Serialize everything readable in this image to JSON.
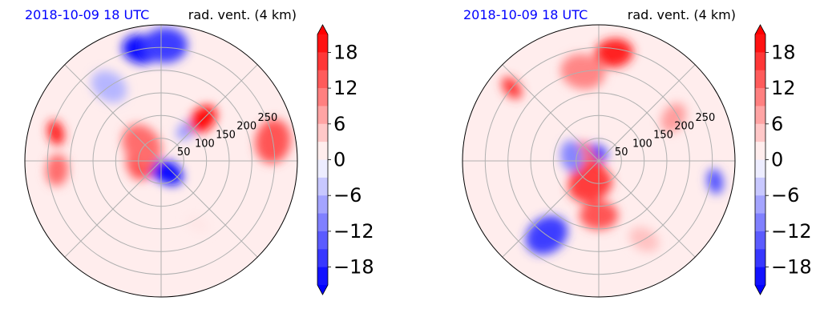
{
  "chart_data": [
    {
      "type": "heatmap",
      "projection": "polar",
      "title_left": "2018-10-09 18 UTC",
      "title_right": "rad. vent. (4 km)",
      "r_ticks": [
        "50",
        "100",
        "150",
        "200",
        "250"
      ],
      "r_max": 300,
      "grid": true,
      "colorbar": {
        "ticks": [
          "18",
          "12",
          "6",
          "0",
          "−6",
          "−12",
          "−18"
        ],
        "range": [
          -21,
          21
        ],
        "levels": 14,
        "extend": "both",
        "cmap": "bwr"
      },
      "features": [
        {
          "r": 20,
          "theta": 250,
          "value": -21
        },
        {
          "r": 30,
          "theta": 300,
          "value": -20
        },
        {
          "r": 45,
          "theta": 180,
          "value": 14
        },
        {
          "r": 55,
          "theta": 140,
          "value": 12
        },
        {
          "r": 90,
          "theta": 50,
          "value": -8
        },
        {
          "r": 130,
          "theta": 45,
          "value": 20
        },
        {
          "r": 250,
          "theta": 100,
          "value": -20
        },
        {
          "r": 255,
          "theta": 88,
          "value": -16
        },
        {
          "r": 240,
          "theta": 165,
          "value": 18
        },
        {
          "r": 230,
          "theta": 185,
          "value": 12
        },
        {
          "r": 200,
          "theta": 125,
          "value": -6
        },
        {
          "r": 250,
          "theta": 10,
          "value": 14
        },
        {
          "r": 160,
          "theta": 300,
          "value": 2
        }
      ]
    },
    {
      "type": "heatmap",
      "projection": "polar",
      "title_left": "2018-10-09 18 UTC",
      "title_right": "rad. vent. (4 km)",
      "r_ticks": [
        "50",
        "100",
        "150",
        "200",
        "250"
      ],
      "r_max": 300,
      "grid": true,
      "colorbar": {
        "ticks": [
          "18",
          "12",
          "6",
          "0",
          "−6",
          "−12",
          "−18"
        ],
        "range": [
          -21,
          21
        ],
        "levels": 14,
        "extend": "both",
        "cmap": "bwr"
      },
      "features": [
        {
          "r": 20,
          "theta": 110,
          "value": -16
        },
        {
          "r": 30,
          "theta": 200,
          "value": -14
        },
        {
          "r": 40,
          "theta": 230,
          "value": 20
        },
        {
          "r": 55,
          "theta": 250,
          "value": 16
        },
        {
          "r": 35,
          "theta": 150,
          "value": 12
        },
        {
          "r": 60,
          "theta": 170,
          "value": -10
        },
        {
          "r": 240,
          "theta": 82,
          "value": 18
        },
        {
          "r": 200,
          "theta": 100,
          "value": 10
        },
        {
          "r": 250,
          "theta": 140,
          "value": 16
        },
        {
          "r": 190,
          "theta": 30,
          "value": 8
        },
        {
          "r": 120,
          "theta": 270,
          "value": 14
        },
        {
          "r": 200,
          "theta": 235,
          "value": -16
        },
        {
          "r": 260,
          "theta": 350,
          "value": -14
        },
        {
          "r": 200,
          "theta": 300,
          "value": 5
        }
      ]
    }
  ]
}
